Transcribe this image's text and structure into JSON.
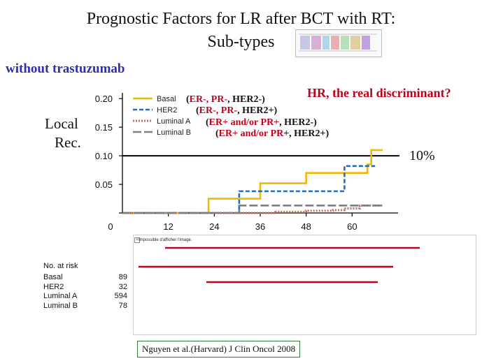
{
  "title_line1": "Prognostic Factors for LR after BCT with RT:",
  "title_line2": "Sub-types",
  "subtitle": "without trastuzumab",
  "annotation_hr": "HR, the real discriminant?",
  "threshold_label": "10%",
  "ylabel_line1": "Local",
  "ylabel_line2": "Rec.",
  "subtypes": [
    {
      "red": "ER-, PR-",
      "black": ", HER2-",
      "open": "(",
      "close": ")"
    },
    {
      "red": "ER-, PR-",
      "black": ", HER2+",
      "open": "(",
      "close": ")"
    },
    {
      "red": "ER+ and/or PR+",
      "black": ", HER2-",
      "open": "(",
      "close": ")"
    },
    {
      "red": "ER+ and/or PR",
      "black": "+, HER2+",
      "open": "(",
      "close": ")"
    }
  ],
  "broken_image_text": "Impossible d'afficher l'image.",
  "risk_table": {
    "header": "No. at risk",
    "rows": [
      {
        "name": "Basal",
        "n": "89"
      },
      {
        "name": "HER2",
        "n": "32"
      },
      {
        "name": "Luminal A",
        "n": "594"
      },
      {
        "name": "Luminal B",
        "n": "78"
      }
    ]
  },
  "citation": "Nguyen et al.(Harvard) J Clin Oncol 2008",
  "colors": {
    "basal": "#f2b705",
    "her2": "#1f6fc1",
    "luminal_a": "#c27060",
    "luminal_b": "#7f7f7f",
    "accent_red": "#c0001d",
    "subtitle_blue": "#2b2fb4"
  },
  "chart_data": {
    "type": "line",
    "step": true,
    "title": "",
    "xlabel": "",
    "ylabel": "Local Rec.",
    "x_ticks": [
      0,
      12,
      24,
      36,
      48,
      60
    ],
    "y_ticks": [
      0,
      0.05,
      0.1,
      0.15,
      0.2
    ],
    "y_tick_labels": [
      "",
      "0.05",
      "0.10",
      "0.15",
      "0.20"
    ],
    "x_tick_labels": [
      "0",
      "12",
      "24",
      "36",
      "48",
      "60"
    ],
    "xlim": [
      0,
      72
    ],
    "ylim": [
      0,
      0.21
    ],
    "reference_line": {
      "y": 0.1,
      "label": "10%"
    },
    "series": [
      {
        "name": "Basal",
        "key": "basal",
        "style": "solid",
        "x": [
          0,
          22,
          22.5,
          32,
          36,
          48,
          56,
          64,
          65,
          68
        ],
        "y": [
          0,
          0,
          0.025,
          0.025,
          0.052,
          0.07,
          0.07,
          0.085,
          0.11,
          0.11
        ]
      },
      {
        "name": "HER2",
        "key": "her2",
        "style": "dashed",
        "x": [
          0,
          30,
          30.5,
          57,
          58,
          66
        ],
        "y": [
          0,
          0,
          0.038,
          0.038,
          0.082,
          0.082
        ]
      },
      {
        "name": "Luminal A",
        "key": "luminal_a",
        "style": "dotted",
        "x": [
          0,
          40,
          48,
          55,
          58,
          62,
          68
        ],
        "y": [
          0,
          0.002,
          0.004,
          0.005,
          0.008,
          0.013,
          0.013
        ]
      },
      {
        "name": "Luminal B",
        "key": "luminal_b",
        "style": "dashdot",
        "x": [
          0,
          30,
          30.5,
          68
        ],
        "y": [
          0,
          0,
          0.013,
          0.013
        ]
      }
    ]
  }
}
